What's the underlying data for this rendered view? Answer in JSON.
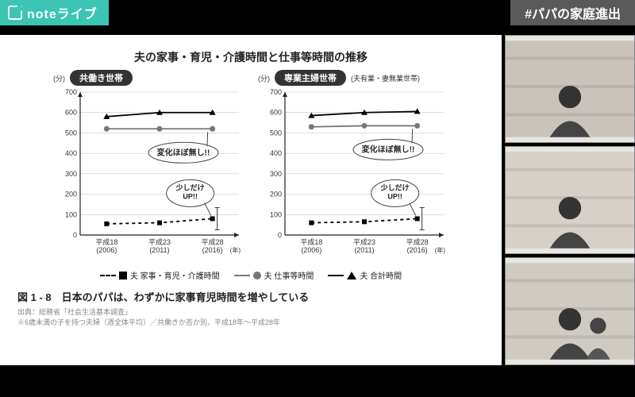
{
  "header": {
    "brand_text": "noteライブ",
    "hashtag": "#パパの家庭進出"
  },
  "slide": {
    "title": "夫の家事・育児・介護時間と仕事等時間の推移",
    "y_axis_unit": "(分)",
    "x_axis_unit": "(年)",
    "caption": "図 1 - 8　日本のパパは、わずかに家事育児時間を増やしている",
    "source_line1": "出典：総務省「社会生活基本調査」",
    "source_line2": "※6歳未満の子を持つ夫婦（週全体平均）／共働きか否か別、平成18年～平成28年",
    "panels": [
      {
        "label": "共働き世帯",
        "sublabel": "",
        "callout_top": "変化ほぼ無し!!",
        "callout_bottom": "少しだけ\nUP!!"
      },
      {
        "label": "専業主婦世帯",
        "sublabel": "(夫有業・妻無業世帯)",
        "callout_top": "変化ほぼ無し!!",
        "callout_bottom": "少しだけ\nUP!!"
      }
    ],
    "x_ticks": [
      {
        "era": "平成18",
        "year": "(2006)"
      },
      {
        "era": "平成23",
        "year": "(2011)"
      },
      {
        "era": "平成28",
        "year": "(2016)"
      }
    ],
    "legend": {
      "series_a": "夫 家事・育児・介護時間",
      "series_b": "夫 仕事等時間",
      "series_c": "夫 合計時間"
    },
    "chart": {
      "type": "line",
      "ylim": [
        0,
        700
      ],
      "ytick_step": 100,
      "background_color": "#ffffff",
      "grid_color": "#bbbbbb",
      "axis_color": "#222222",
      "label_fontsize": 9,
      "callout_stroke": "#444444",
      "callout_fill": "#ffffff",
      "panels_data": [
        {
          "housework": {
            "values": [
              55,
              60,
              80
            ],
            "color": "#000000",
            "marker": "square",
            "dash": "4 4",
            "line_width": 1.8
          },
          "work": {
            "values": [
              520,
              520,
              520
            ],
            "color": "#777777",
            "marker": "circle",
            "dash": "",
            "line_width": 1.8
          },
          "total": {
            "values": [
              580,
              600,
              600
            ],
            "color": "#000000",
            "marker": "triangle",
            "dash": "",
            "line_width": 1.8
          }
        },
        {
          "housework": {
            "values": [
              60,
              65,
              80
            ],
            "color": "#000000",
            "marker": "square",
            "dash": "4 4",
            "line_width": 1.8
          },
          "work": {
            "values": [
              530,
              535,
              535
            ],
            "color": "#777777",
            "marker": "circle",
            "dash": "",
            "line_width": 1.8
          },
          "total": {
            "values": [
              585,
              600,
              605
            ],
            "color": "#000000",
            "marker": "triangle",
            "dash": "",
            "line_width": 1.8
          }
        }
      ]
    }
  },
  "side_thumbs": [
    {
      "id": "guest-1"
    },
    {
      "id": "guest-2"
    },
    {
      "id": "guest-3"
    }
  ]
}
